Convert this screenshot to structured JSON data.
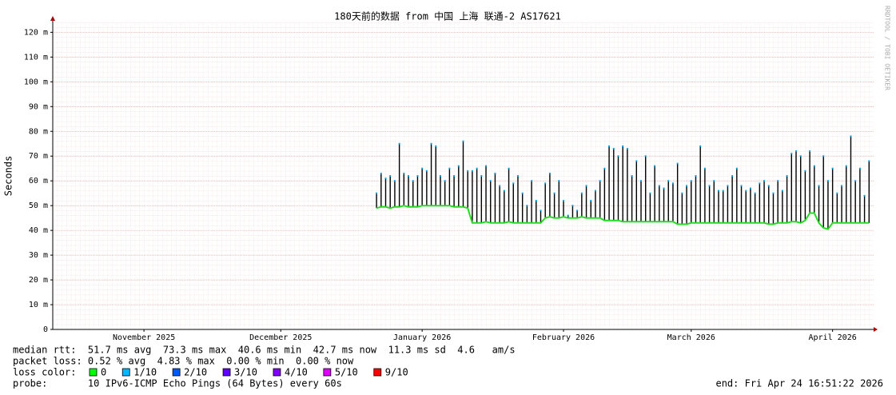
{
  "chart_data": {
    "type": "line",
    "title": "180天前的数据 from 中国 上海 联通-2 AS17621",
    "y_label": "Seconds",
    "side_note": "RRDTOOL / TOBI OETIKER",
    "xlim": [
      0,
      180
    ],
    "xticks": [
      {
        "value": 20,
        "label": "November 2025"
      },
      {
        "value": 50,
        "label": "December 2025"
      },
      {
        "value": 81,
        "label": "January 2026"
      },
      {
        "value": 112,
        "label": "February 2026"
      },
      {
        "value": 140,
        "label": "March 2026"
      },
      {
        "value": 171,
        "label": "April 2026"
      }
    ],
    "ylim": [
      0,
      124
    ],
    "yticks": [
      0,
      {
        "value": 10,
        "label": "10 m"
      },
      {
        "value": 20,
        "label": "20 m"
      },
      {
        "value": 30,
        "label": "30 m"
      },
      {
        "value": 40,
        "label": "40 m"
      },
      {
        "value": 50,
        "label": "50 m"
      },
      {
        "value": 60,
        "label": "60 m"
      },
      {
        "value": 70,
        "label": "70 m"
      },
      {
        "value": 80,
        "label": "80 m"
      },
      {
        "value": 90,
        "label": "90 m"
      },
      {
        "value": 100,
        "label": "100 m"
      },
      {
        "value": 110,
        "label": "110 m"
      },
      {
        "value": 120,
        "label": "120 m"
      }
    ],
    "grid": true,
    "x": [
      71,
      72,
      73,
      74,
      75,
      76,
      77,
      78,
      79,
      80,
      81,
      82,
      83,
      84,
      85,
      86,
      87,
      88,
      89,
      90,
      91,
      92,
      93,
      94,
      95,
      96,
      97,
      98,
      99,
      100,
      101,
      102,
      103,
      104,
      105,
      106,
      107,
      108,
      109,
      110,
      111,
      112,
      113,
      114,
      115,
      116,
      117,
      118,
      119,
      120,
      121,
      122,
      123,
      124,
      125,
      126,
      127,
      128,
      129,
      130,
      131,
      132,
      133,
      134,
      135,
      136,
      137,
      138,
      139,
      140,
      141,
      142,
      143,
      144,
      145,
      146,
      147,
      148,
      149,
      150,
      151,
      152,
      153,
      154,
      155,
      156,
      157,
      158,
      159,
      160,
      161,
      162,
      163,
      164,
      165,
      166,
      167,
      168,
      169,
      170,
      171,
      172,
      173,
      174,
      175,
      176,
      177,
      178,
      179
    ],
    "series": [
      {
        "color": "#000000",
        "mark": "spike",
        "values": [
          55,
          63,
          61,
          62,
          60,
          75,
          63,
          62,
          60,
          62,
          65,
          64,
          75,
          74,
          62,
          60,
          65,
          62,
          66,
          76,
          64,
          64,
          65,
          62,
          66,
          60,
          63,
          58,
          56,
          65,
          59,
          62,
          55,
          50,
          60,
          52,
          48,
          59,
          63,
          55,
          60,
          52,
          46,
          50,
          48,
          55,
          58,
          52,
          56,
          60,
          65,
          74,
          73,
          70,
          74,
          73,
          62,
          68,
          60,
          70,
          55,
          66,
          58,
          57,
          60,
          59,
          67,
          55,
          58,
          60,
          62,
          74,
          65,
          58,
          60,
          56,
          56,
          58,
          62,
          65,
          58,
          56,
          57,
          55,
          59,
          60,
          58,
          55,
          60,
          56,
          62,
          71,
          72,
          70,
          64,
          72,
          66,
          58,
          70,
          60,
          65,
          55,
          58,
          66,
          78,
          60,
          65,
          54,
          68
        ]
      },
      {
        "color": "#22dd22",
        "mark": "line",
        "values": [
          49,
          49.5,
          49.5,
          49,
          49.5,
          49.5,
          50,
          49.5,
          49.5,
          49.5,
          50,
          50,
          50,
          50,
          50,
          50,
          50,
          49.5,
          49.5,
          49.5,
          49,
          43,
          43,
          43,
          43.5,
          43,
          43,
          43,
          43,
          43.5,
          43,
          43,
          43,
          43,
          43,
          43,
          43,
          45,
          45.5,
          45,
          45,
          45.5,
          45,
          45,
          45,
          45.5,
          45,
          45,
          45,
          45,
          44,
          44,
          44,
          44,
          43.5,
          43.5,
          43.5,
          43.5,
          43.5,
          43.5,
          43.5,
          43.5,
          43.5,
          43.5,
          43.5,
          43.5,
          42.5,
          42.5,
          42.5,
          43,
          43,
          43,
          43,
          43,
          43,
          43,
          43,
          43,
          43,
          43,
          43,
          43,
          43,
          43,
          43,
          43,
          42.5,
          42.5,
          43,
          43,
          43,
          43.5,
          43.5,
          43,
          44,
          47,
          47,
          43,
          41,
          40.5,
          43,
          43,
          43,
          43,
          43,
          43,
          43,
          43,
          43
        ]
      }
    ],
    "stats": [
      "median rtt:  51.7 ms avg  73.3 ms max  40.6 ms min  42.7 ms now  11.3 ms sd  4.6   am/s",
      "packet loss: 0.52 % avg  4.83 % max  0.00 % min  0.00 % now"
    ],
    "loss_label": "loss color:",
    "loss_legend": [
      {
        "label": "0",
        "color": "#00ff00"
      },
      {
        "label": "1/10",
        "color": "#00b8ff"
      },
      {
        "label": "2/10",
        "color": "#0059ff"
      },
      {
        "label": "3/10",
        "color": "#5e00ff"
      },
      {
        "label": "4/10",
        "color": "#7e00ff"
      },
      {
        "label": "5/10",
        "color": "#dd00ff"
      },
      {
        "label": "9/10",
        "color": "#ff0000"
      }
    ],
    "probe": "probe:       10 IPv6-ICMP Echo Pings (64 Bytes) every 60s",
    "end": "end: Fri Apr 24 16:51:22 2026"
  }
}
